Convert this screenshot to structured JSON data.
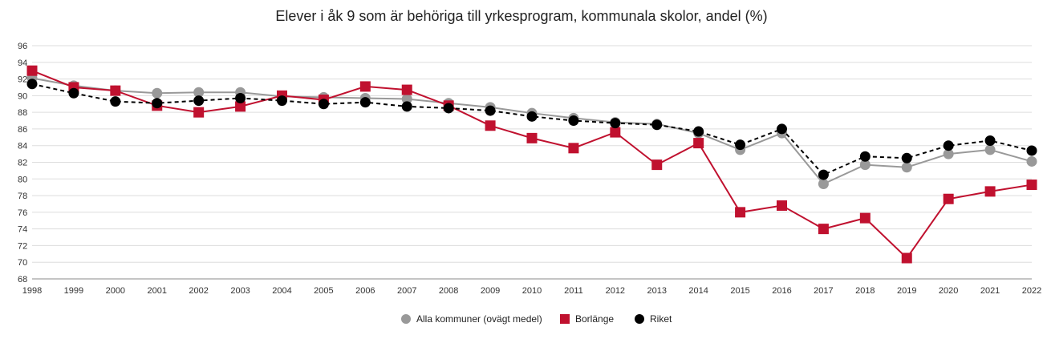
{
  "chart_data": {
    "type": "line",
    "title": "Elever i åk 9 som är behöriga till yrkesprogram, kommunala skolor, andel (%)",
    "xlabel": "",
    "ylabel": "",
    "ylim": [
      68,
      96
    ],
    "yticks": [
      68,
      70,
      72,
      74,
      76,
      78,
      80,
      82,
      84,
      86,
      88,
      90,
      92,
      94,
      96
    ],
    "categories": [
      "1998",
      "1999",
      "2000",
      "2001",
      "2002",
      "2003",
      "2004",
      "2005",
      "2006",
      "2007",
      "2008",
      "2009",
      "2010",
      "2011",
      "2012",
      "2013",
      "2014",
      "2015",
      "2016",
      "2017",
      "2018",
      "2019",
      "2020",
      "2021",
      "2022"
    ],
    "grid": true,
    "legend_position": "bottom-center",
    "series": [
      {
        "name": "Alla kommuner (ovägt medel)",
        "color": "#999999",
        "marker": "circle",
        "line": "solid",
        "values": [
          92.1,
          91.2,
          90.6,
          90.3,
          90.4,
          90.4,
          89.9,
          89.8,
          89.7,
          89.6,
          89.1,
          88.6,
          87.9,
          87.3,
          86.8,
          86.6,
          85.5,
          83.5,
          85.5,
          79.4,
          81.7,
          81.4,
          83.0,
          83.5,
          82.1
        ]
      },
      {
        "name": "Borlänge",
        "color": "#c0112f",
        "marker": "square",
        "line": "solid",
        "values": [
          93.0,
          91.0,
          90.6,
          88.8,
          88.0,
          88.7,
          90.0,
          89.5,
          91.1,
          90.7,
          88.8,
          86.4,
          84.9,
          83.7,
          85.6,
          81.7,
          84.3,
          76.0,
          76.8,
          74.0,
          75.3,
          70.5,
          77.6,
          78.5,
          79.3
        ]
      },
      {
        "name": "Riket",
        "color": "#000000",
        "marker": "circle",
        "line": "dashed",
        "values": [
          91.4,
          90.3,
          89.3,
          89.1,
          89.4,
          89.7,
          89.4,
          89.0,
          89.2,
          88.7,
          88.5,
          88.2,
          87.5,
          87.0,
          86.7,
          86.5,
          85.7,
          84.1,
          86.0,
          80.5,
          82.7,
          82.5,
          84.0,
          84.6,
          83.4
        ]
      }
    ]
  }
}
